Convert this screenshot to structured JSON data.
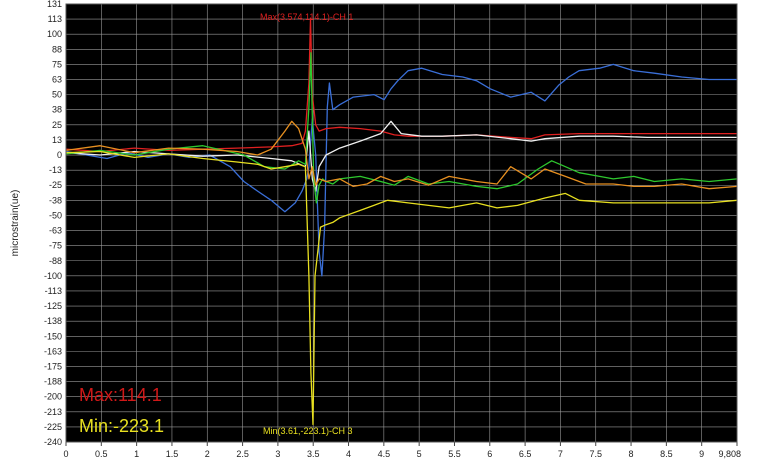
{
  "chart_data": {
    "type": "line",
    "title": "",
    "xlabel": "",
    "ylabel": "microstrain(ue)",
    "xlim": [
      0,
      9.808
    ],
    "ylim": [
      -240,
      131
    ],
    "x_ticks": [
      "0",
      "0.5",
      "1",
      "1.5",
      "2",
      "2.5",
      "3",
      "3.5",
      "4",
      "4.5",
      "5",
      "5.5",
      "6",
      "6.5",
      "7",
      "7.5",
      "8",
      "8.5",
      "9",
      "9,808"
    ],
    "y_ticks": [
      "131",
      "113",
      "100",
      "88",
      "75",
      "63",
      "50",
      "38",
      "25",
      "13",
      "0",
      "-13",
      "-25",
      "-38",
      "-50",
      "-63",
      "-75",
      "-88",
      "-100",
      "-113",
      "-125",
      "-138",
      "-150",
      "-163",
      "-175",
      "-188",
      "-200",
      "-213",
      "-225",
      "-240"
    ],
    "grid": true,
    "background": "#000000",
    "grid_color": "#ffffff",
    "series": [
      {
        "name": "",
        "color": "#3a6fd8",
        "x": [
          0,
          0.3,
          0.6,
          0.9,
          1.2,
          1.5,
          1.8,
          2.1,
          2.4,
          2.6,
          2.8,
          3.0,
          3.2,
          3.35,
          3.45,
          3.52,
          3.55,
          3.6,
          3.65,
          3.7,
          3.74,
          3.78,
          3.82,
          3.85,
          3.9,
          4.0,
          4.2,
          4.5,
          4.65,
          4.75,
          4.85,
          5.0,
          5.2,
          5.5,
          5.8,
          6.0,
          6.2,
          6.5,
          6.8,
          7.0,
          7.2,
          7.35,
          7.5,
          7.8,
          8.0,
          8.3,
          8.6,
          9.0,
          9.4,
          9.808
        ],
        "y": [
          3,
          0,
          -3,
          2,
          -2,
          1,
          -2,
          0,
          -10,
          -22,
          -30,
          -38,
          -47,
          -40,
          -30,
          -20,
          -10,
          30,
          0,
          -80,
          -100,
          -60,
          40,
          60,
          38,
          42,
          48,
          50,
          46,
          55,
          62,
          70,
          72,
          67,
          65,
          62,
          55,
          48,
          52,
          45,
          58,
          65,
          70,
          72,
          75,
          70,
          68,
          65,
          63,
          63
        ]
      },
      {
        "name": "",
        "color": "#e02020",
        "x": [
          0,
          0.5,
          1.0,
          1.5,
          2.0,
          2.5,
          3.0,
          3.3,
          3.45,
          3.5,
          3.55,
          3.574,
          3.6,
          3.65,
          3.7,
          3.8,
          4.0,
          4.3,
          4.6,
          4.8,
          5.0,
          5.5,
          6.0,
          6.5,
          6.8,
          7.0,
          7.5,
          8.0,
          8.5,
          9.0,
          9.808
        ],
        "y": [
          5,
          3,
          6,
          4,
          5,
          6,
          7,
          8,
          10,
          20,
          60,
          114.1,
          50,
          25,
          20,
          22,
          23,
          22,
          20,
          17,
          16,
          16,
          17,
          15,
          14,
          17,
          18,
          18,
          18,
          18,
          18
        ]
      },
      {
        "name": "",
        "color": "#f0f0f0",
        "x": [
          0,
          0.5,
          1.0,
          1.5,
          2.0,
          2.5,
          3.0,
          3.3,
          3.5,
          3.55,
          3.6,
          3.65,
          3.7,
          3.8,
          4.0,
          4.3,
          4.6,
          4.75,
          4.9,
          5.2,
          5.5,
          6.0,
          6.5,
          6.8,
          7.0,
          7.5,
          8.0,
          8.5,
          9.0,
          9.808
        ],
        "y": [
          2,
          0,
          3,
          1,
          -1,
          0,
          -3,
          -5,
          -10,
          20,
          -20,
          -30,
          -10,
          0,
          6,
          12,
          18,
          28,
          18,
          16,
          16,
          17,
          14,
          12,
          14,
          16,
          16,
          15,
          15,
          15
        ]
      },
      {
        "name": "",
        "color": "#2ec82e",
        "x": [
          0,
          0.5,
          1.0,
          1.5,
          2.0,
          2.3,
          2.6,
          2.9,
          3.2,
          3.4,
          3.5,
          3.55,
          3.58,
          3.62,
          3.66,
          3.7,
          3.75,
          3.8,
          3.9,
          4.0,
          4.3,
          4.6,
          4.8,
          5.0,
          5.3,
          5.6,
          6.0,
          6.3,
          6.6,
          6.9,
          7.1,
          7.3,
          7.5,
          7.8,
          8.0,
          8.3,
          8.6,
          9.0,
          9.4,
          9.808
        ],
        "y": [
          1,
          4,
          0,
          5,
          8,
          4,
          0,
          -10,
          -12,
          -5,
          -8,
          40,
          85,
          -20,
          -40,
          -25,
          -20,
          -22,
          -24,
          -20,
          -18,
          -22,
          -25,
          -18,
          -24,
          -22,
          -26,
          -28,
          -24,
          -12,
          -5,
          -10,
          -15,
          -18,
          -20,
          -18,
          -22,
          -20,
          -22,
          -20
        ]
      },
      {
        "name": "",
        "color": "#e89020",
        "x": [
          0,
          0.5,
          1.0,
          1.5,
          2.0,
          2.5,
          2.8,
          3.0,
          3.2,
          3.3,
          3.4,
          3.5,
          3.55,
          3.6,
          3.65,
          3.7,
          3.8,
          4.0,
          4.2,
          4.4,
          4.6,
          4.8,
          5.0,
          5.3,
          5.6,
          6.0,
          6.3,
          6.5,
          6.8,
          7.0,
          7.3,
          7.6,
          8.0,
          8.3,
          8.6,
          9.0,
          9.4,
          9.808
        ],
        "y": [
          4,
          8,
          2,
          6,
          5,
          3,
          0,
          5,
          20,
          28,
          22,
          5,
          -20,
          -10,
          -25,
          -20,
          -22,
          -20,
          -26,
          -24,
          -18,
          -22,
          -20,
          -25,
          -18,
          -22,
          -24,
          -10,
          -20,
          -12,
          -18,
          -24,
          -24,
          -26,
          -26,
          -24,
          -28,
          -26
        ]
      },
      {
        "name": "",
        "color": "#e8e020",
        "x": [
          0,
          0.5,
          1.0,
          1.5,
          2.0,
          2.5,
          2.8,
          3.0,
          3.2,
          3.4,
          3.5,
          3.55,
          3.58,
          3.61,
          3.64,
          3.68,
          3.72,
          3.8,
          3.9,
          4.0,
          4.3,
          4.5,
          4.7,
          5.0,
          5.3,
          5.6,
          6.0,
          6.3,
          6.6,
          7.0,
          7.3,
          7.5,
          8.0,
          8.5,
          9.0,
          9.4,
          9.808
        ],
        "y": [
          2,
          3,
          -2,
          1,
          -3,
          -6,
          -8,
          -12,
          -10,
          -8,
          -10,
          -100,
          -180,
          -223.1,
          -100,
          -80,
          -60,
          -58,
          -56,
          -52,
          -46,
          -42,
          -38,
          -40,
          -42,
          -44,
          -40,
          -44,
          -42,
          -36,
          -32,
          -38,
          -40,
          -40,
          -40,
          -40,
          -38
        ]
      }
    ],
    "annotations": {
      "max_label": "Max(3.574,114.1)-CH 1",
      "min_label": "Min(3.61,-223.1)-CH 3",
      "max_text": "Max:114.1",
      "min_text": "Min:-223.1"
    }
  }
}
